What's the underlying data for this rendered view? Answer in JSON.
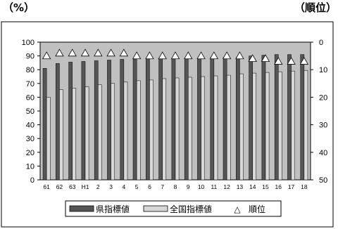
{
  "chart_data": {
    "type": "bar",
    "categories": [
      "61",
      "62",
      "63",
      "H1",
      "2",
      "3",
      "4",
      "5",
      "6",
      "7",
      "8",
      "9",
      "10",
      "11",
      "12",
      "13",
      "14",
      "15",
      "16",
      "17",
      "18"
    ],
    "series": [
      {
        "name": "県指標値",
        "kind": "bar",
        "axis": "left",
        "color": "#555555",
        "values": [
          81,
          84.5,
          85.5,
          86,
          86.5,
          87,
          87.5,
          87.5,
          88,
          88,
          88.5,
          88.5,
          88.5,
          89,
          89,
          89,
          90,
          90.5,
          91,
          91,
          91
        ]
      },
      {
        "name": "全国指標値",
        "kind": "bar",
        "axis": "left",
        "color": "#d8d8d8",
        "values": [
          60,
          65.5,
          66.5,
          67.5,
          69,
          70,
          71,
          72,
          72.5,
          73.5,
          74,
          74.5,
          75,
          75.5,
          76,
          77,
          77.5,
          78,
          78.5,
          79,
          79.5
        ]
      },
      {
        "name": "順位",
        "kind": "marker",
        "axis": "right",
        "color": "#ffffff",
        "values": [
          5,
          4,
          4,
          4,
          4,
          4,
          4,
          5,
          5,
          5,
          5,
          5,
          5,
          5,
          5,
          5,
          6,
          6,
          7,
          7,
          7
        ]
      }
    ],
    "y_left": {
      "unit": "（%）",
      "ticks": [
        "100",
        "90",
        "80",
        "70",
        "60",
        "50",
        "40",
        "30",
        "20",
        "10",
        "0"
      ],
      "ylim": [
        0,
        100
      ]
    },
    "y_right": {
      "unit": "（順位）",
      "ticks": [
        "0",
        "10",
        "20",
        "30",
        "40",
        "50"
      ],
      "ylim": [
        0,
        50
      ],
      "inverted": true
    },
    "legend": {
      "position": "bottom",
      "labels": [
        "県指標値",
        "全国指標値",
        "順位"
      ],
      "marker_symbol": "△"
    },
    "plot_background": "#c0c0c0",
    "grid": false
  }
}
